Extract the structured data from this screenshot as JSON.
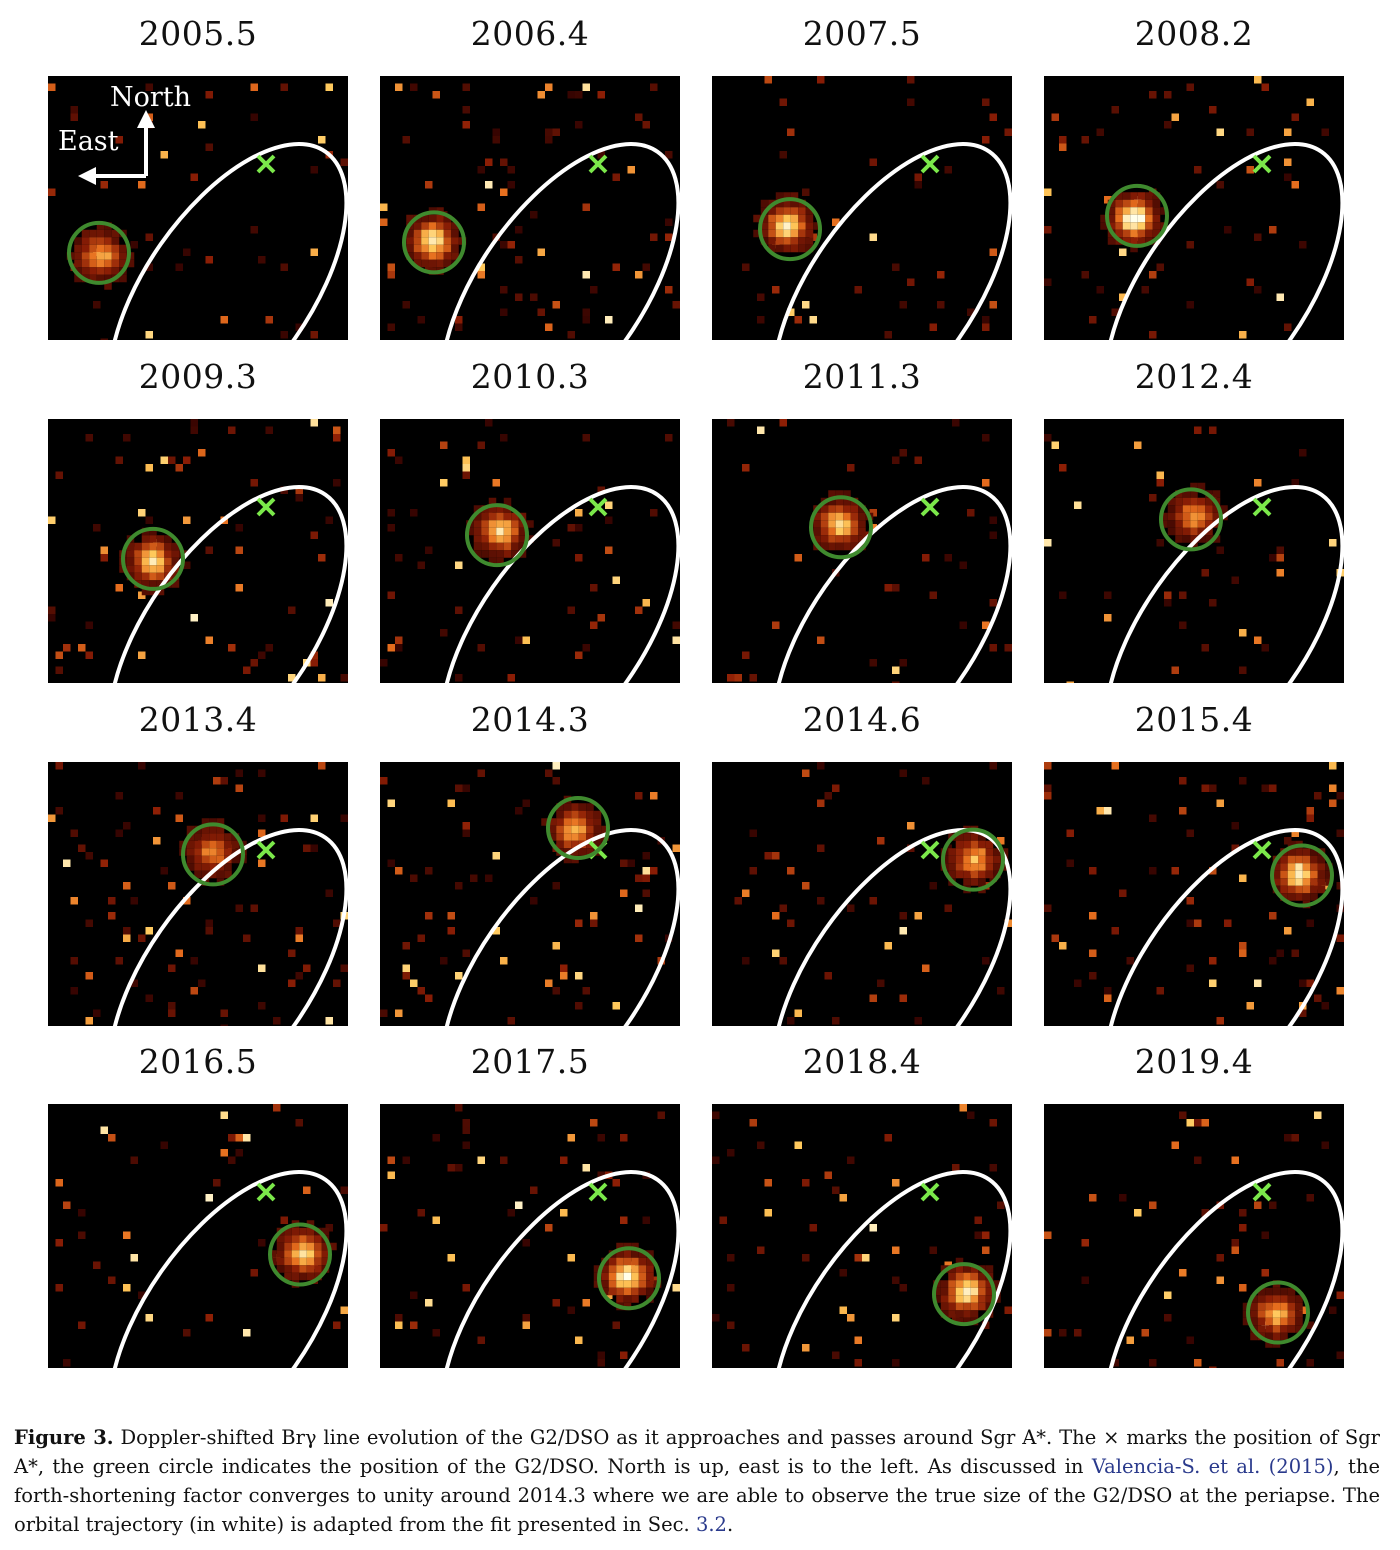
{
  "panels": [
    {
      "label": "2005.5",
      "blob": [
        0.17,
        0.67
      ],
      "circle": [
        0.17,
        0.67
      ],
      "bright": 0.7
    },
    {
      "label": "2006.4",
      "blob": [
        0.18,
        0.63
      ],
      "circle": [
        0.18,
        0.63
      ],
      "bright": 0.9
    },
    {
      "label": "2007.5",
      "blob": [
        0.26,
        0.58
      ],
      "circle": [
        0.26,
        0.58
      ],
      "bright": 0.9
    },
    {
      "label": "2008.2",
      "blob": [
        0.31,
        0.53
      ],
      "circle": [
        0.31,
        0.53
      ],
      "bright": 1.0
    },
    {
      "label": "2009.3",
      "blob": [
        0.35,
        0.53
      ],
      "circle": [
        0.35,
        0.53
      ],
      "bright": 0.8
    },
    {
      "label": "2010.3",
      "blob": [
        0.39,
        0.44
      ],
      "circle": [
        0.39,
        0.44
      ],
      "bright": 0.8
    },
    {
      "label": "2011.3",
      "blob": [
        0.43,
        0.41
      ],
      "circle": [
        0.43,
        0.41
      ],
      "bright": 0.8
    },
    {
      "label": "2012.4",
      "blob": [
        0.49,
        0.38
      ],
      "circle": [
        0.49,
        0.38
      ],
      "bright": 0.6
    },
    {
      "label": "2013.4",
      "blob": [
        0.55,
        0.35
      ],
      "circle": [
        0.55,
        0.35
      ],
      "bright": 0.6
    },
    {
      "label": "2014.3",
      "blob": [
        0.66,
        0.25
      ],
      "circle": [
        0.66,
        0.25
      ],
      "bright": 0.7
    },
    {
      "label": "2014.6",
      "blob": [
        0.87,
        0.37
      ],
      "circle": [
        0.87,
        0.37
      ],
      "bright": 0.7
    },
    {
      "label": "2015.4",
      "blob": [
        0.86,
        0.43
      ],
      "circle": [
        0.86,
        0.43
      ],
      "bright": 0.9
    },
    {
      "label": "2016.5",
      "blob": [
        0.84,
        0.57
      ],
      "circle": [
        0.84,
        0.57
      ],
      "bright": 0.8
    },
    {
      "label": "2017.5",
      "blob": [
        0.83,
        0.66
      ],
      "circle": [
        0.83,
        0.66
      ],
      "bright": 0.9
    },
    {
      "label": "2018.4",
      "blob": [
        0.84,
        0.72
      ],
      "circle": [
        0.84,
        0.72
      ],
      "bright": 0.9
    },
    {
      "label": "2019.4",
      "blob": [
        0.78,
        0.79
      ],
      "circle": [
        0.78,
        0.79
      ],
      "bright": 0.7
    }
  ],
  "compass": {
    "north": "North",
    "east": "East"
  },
  "colors": {
    "orbit": "#ffffff",
    "circle": "#3f8a2e",
    "sgr_marker": "#7be84a",
    "background": "#000000"
  },
  "caption": {
    "figure_label": "Figure 3.",
    "text_1": " Doppler-shifted Brγ line evolution of the G2/DSO as it approaches and passes around Sgr A*. The × marks the position of Sgr A*, the green circle indicates the position of the G2/DSO. North is up, east is to the left. As discussed in ",
    "ref_1": "Valencia-S. et al. (2015)",
    "text_2": ", the forth-shortening factor converges to unity around 2014.3 where we are able to observe the true size of the G2/DSO at the periapse. The orbital trajectory (in white) is adapted from the fit presented in Sec. ",
    "ref_2": "3.2",
    "text_3": "."
  }
}
